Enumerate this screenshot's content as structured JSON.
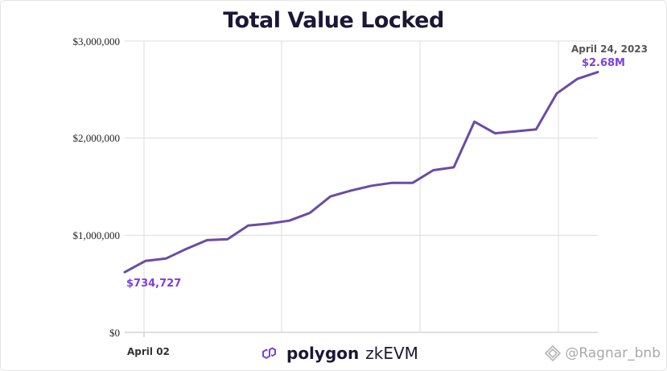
{
  "chart_data": {
    "type": "line",
    "title": "Total Value Locked",
    "xlabel": "",
    "ylabel": "",
    "ylim": [
      0,
      3000000
    ],
    "y_ticks": [
      {
        "value": 0,
        "label": "$0"
      },
      {
        "value": 1000000,
        "label": "$1,000,000"
      },
      {
        "value": 2000000,
        "label": "$2,000,000"
      },
      {
        "value": 3000000,
        "label": "$3,000,000"
      }
    ],
    "x_tick_label": "April 02",
    "series": [
      {
        "name": "Total Value Locked",
        "color": "#6a4ba8",
        "x": [
          "Apr 01",
          "Apr 02",
          "Apr 03",
          "Apr 04",
          "Apr 05",
          "Apr 06",
          "Apr 07",
          "Apr 08",
          "Apr 09",
          "Apr 10",
          "Apr 11",
          "Apr 12",
          "Apr 13",
          "Apr 14",
          "Apr 15",
          "Apr 16",
          "Apr 17",
          "Apr 18",
          "Apr 19",
          "Apr 20",
          "Apr 21",
          "Apr 22",
          "Apr 23",
          "Apr 24"
        ],
        "values": [
          620000,
          734727,
          760000,
          860000,
          950000,
          960000,
          1100000,
          1120000,
          1150000,
          1230000,
          1400000,
          1460000,
          1510000,
          1540000,
          1540000,
          1670000,
          1700000,
          2170000,
          2050000,
          2070000,
          2090000,
          2460000,
          2610000,
          2680000
        ]
      }
    ],
    "annotations": {
      "start_value": "$734,727",
      "end_date": "April 24, 2023",
      "end_value": "$2.68M"
    }
  },
  "branding": {
    "word": "polygon",
    "product": "zkEVM",
    "logo_color": "#7b3fe4"
  },
  "watermark": {
    "text": "@Ragnar_bnb"
  }
}
